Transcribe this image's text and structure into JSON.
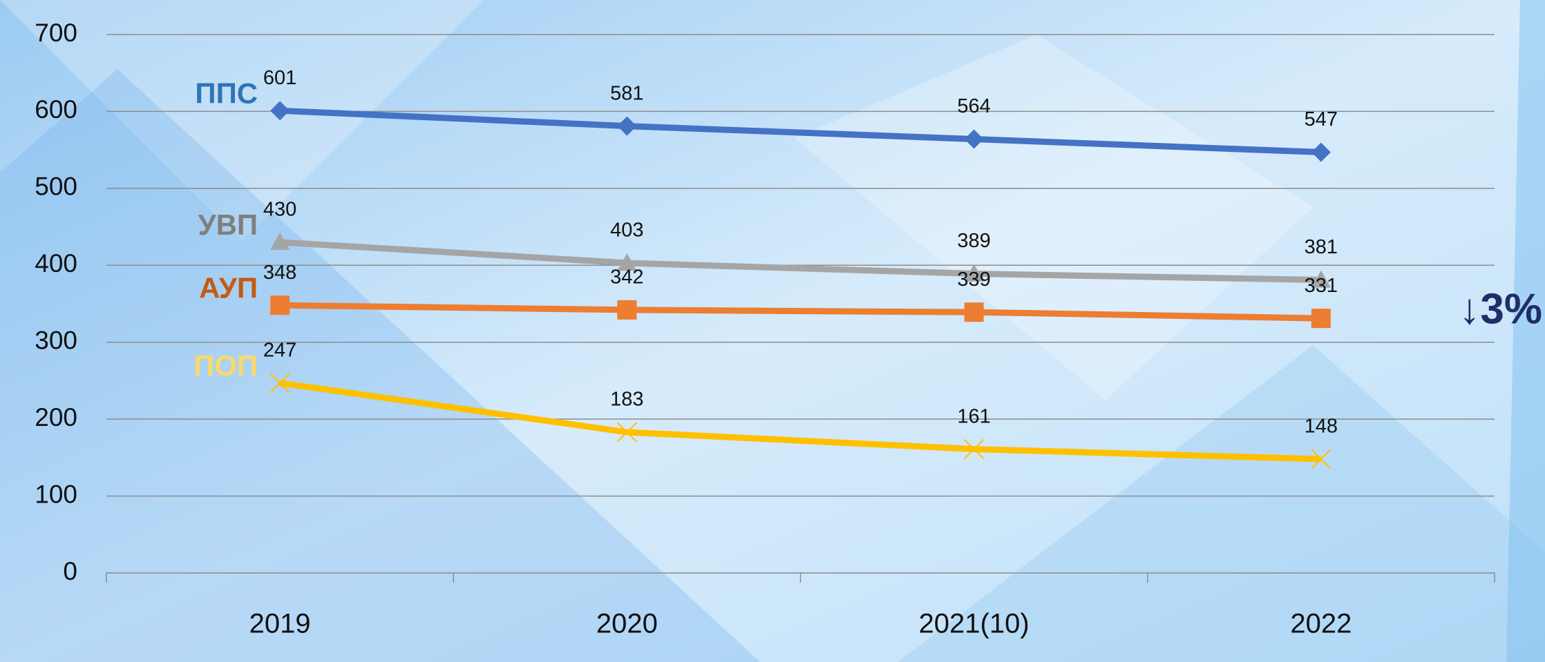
{
  "chart_data": {
    "type": "line",
    "categories": [
      "2019",
      "2020",
      "2021(10)",
      "2022"
    ],
    "series": [
      {
        "name": "ППС",
        "color": "#4472c4",
        "label_color": "#2e75b6",
        "marker": "diamond",
        "values": [
          601,
          581,
          564,
          547
        ]
      },
      {
        "name": "УВП",
        "color": "#a5a5a5",
        "label_color": "#7f7f7f",
        "marker": "triangle",
        "values": [
          430,
          403,
          389,
          381
        ]
      },
      {
        "name": "АУП",
        "color": "#ed7d31",
        "label_color": "#c55a11",
        "marker": "square",
        "values": [
          348,
          342,
          339,
          331
        ]
      },
      {
        "name": "ПОП",
        "color": "#ffc000",
        "label_color": "#ffd966",
        "marker": "x",
        "values": [
          247,
          183,
          161,
          148
        ]
      }
    ],
    "ylim": [
      0,
      700
    ],
    "yticks": [
      0,
      100,
      200,
      300,
      400,
      500,
      600,
      700
    ],
    "grid": true,
    "annotation": "↓3%",
    "annotation_color": "#1f2d6b"
  }
}
